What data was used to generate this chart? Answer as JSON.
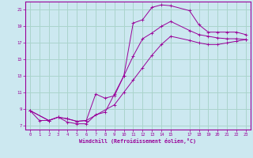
{
  "xlabel": "Windchill (Refroidissement éolien,°C)",
  "bg_color": "#cce8f0",
  "grid_color": "#aad4cc",
  "line_color": "#990099",
  "xlim": [
    -0.5,
    23.5
  ],
  "ylim": [
    6.5,
    22.0
  ],
  "xticks": [
    0,
    1,
    2,
    3,
    4,
    5,
    6,
    7,
    8,
    9,
    10,
    11,
    12,
    13,
    14,
    15,
    17,
    18,
    19,
    20,
    21,
    22,
    23
  ],
  "yticks": [
    7,
    9,
    11,
    13,
    15,
    17,
    19,
    21
  ],
  "curve1_x": [
    0,
    1,
    2,
    3,
    4,
    5,
    6,
    7,
    8,
    9,
    10,
    11,
    12,
    13,
    14,
    15,
    17,
    18,
    19,
    20,
    21,
    22,
    23
  ],
  "curve1_y": [
    8.8,
    7.6,
    7.6,
    8.0,
    7.4,
    7.2,
    7.2,
    8.3,
    8.6,
    10.8,
    13.0,
    19.4,
    19.8,
    21.3,
    21.6,
    21.5,
    20.9,
    19.2,
    18.3,
    18.3,
    18.3,
    18.3,
    18.0
  ],
  "curve2_x": [
    0,
    2,
    3,
    4,
    5,
    6,
    7,
    8,
    9,
    10,
    11,
    12,
    13,
    14,
    15,
    17,
    18,
    19,
    20,
    21,
    22,
    23
  ],
  "curve2_y": [
    8.8,
    7.6,
    8.0,
    7.8,
    7.5,
    7.6,
    10.8,
    10.3,
    10.6,
    13.0,
    15.4,
    17.5,
    18.2,
    19.0,
    19.6,
    18.5,
    18.0,
    17.8,
    17.6,
    17.5,
    17.5,
    17.4
  ],
  "curve3_x": [
    0,
    2,
    3,
    4,
    5,
    6,
    9,
    10,
    11,
    12,
    13,
    14,
    15,
    17,
    18,
    19,
    20,
    21,
    22,
    23
  ],
  "curve3_y": [
    8.8,
    7.6,
    8.0,
    7.8,
    7.5,
    7.6,
    9.5,
    11.0,
    12.5,
    14.0,
    15.5,
    16.8,
    17.8,
    17.3,
    17.0,
    16.8,
    16.8,
    17.0,
    17.2,
    17.4
  ]
}
